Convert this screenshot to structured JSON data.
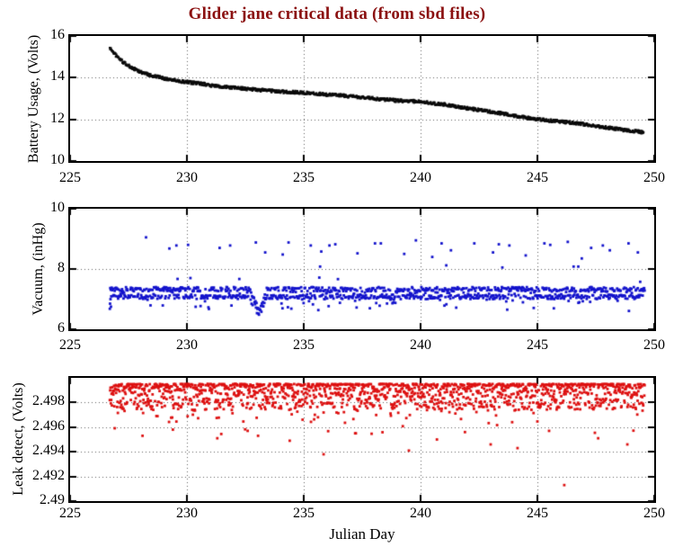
{
  "title": "Glider jane critical data (from sbd files)",
  "title_color": "#8b1010",
  "xlabel": "Julian Day",
  "axis_color": "#000000",
  "grid_color": "#606060",
  "chart_data": [
    {
      "type": "scatter",
      "ylabel": "Battery Usage, (Volts)",
      "xlim": [
        225,
        250
      ],
      "ylim": [
        10,
        16
      ],
      "xticks": [
        225,
        230,
        235,
        240,
        245,
        250
      ],
      "yticks": [
        10,
        12,
        14,
        16
      ],
      "grid": true,
      "marker_color": "#0a0a0a",
      "marker_size": 2.4,
      "series": [
        {
          "name": "battery_volts",
          "kind": "trend",
          "step": 0.02,
          "jitter": 0.07,
          "anchors": [
            [
              226.7,
              15.42
            ],
            [
              226.8,
              15.3
            ],
            [
              227.0,
              15.02
            ],
            [
              227.3,
              14.72
            ],
            [
              227.6,
              14.5
            ],
            [
              228.0,
              14.27
            ],
            [
              228.5,
              14.1
            ],
            [
              229.0,
              13.97
            ],
            [
              229.5,
              13.87
            ],
            [
              230.0,
              13.78
            ],
            [
              230.6,
              13.72
            ],
            [
              231.0,
              13.63
            ],
            [
              231.5,
              13.57
            ],
            [
              232.0,
              13.52
            ],
            [
              232.5,
              13.47
            ],
            [
              233.0,
              13.42
            ],
            [
              233.6,
              13.37
            ],
            [
              234.0,
              13.33
            ],
            [
              234.6,
              13.3
            ],
            [
              235.0,
              13.28
            ],
            [
              235.5,
              13.24
            ],
            [
              236.0,
              13.18
            ],
            [
              236.3,
              13.22
            ],
            [
              236.6,
              13.14
            ],
            [
              237.0,
              13.1
            ],
            [
              237.5,
              13.06
            ],
            [
              238.0,
              13.0
            ],
            [
              238.5,
              12.95
            ],
            [
              239.0,
              12.9
            ],
            [
              239.5,
              12.88
            ],
            [
              240.0,
              12.85
            ],
            [
              240.5,
              12.78
            ],
            [
              241.0,
              12.72
            ],
            [
              241.5,
              12.62
            ],
            [
              242.0,
              12.53
            ],
            [
              242.5,
              12.45
            ],
            [
              243.0,
              12.37
            ],
            [
              243.5,
              12.28
            ],
            [
              244.0,
              12.17
            ],
            [
              244.5,
              12.08
            ],
            [
              245.0,
              12.0
            ],
            [
              245.5,
              11.95
            ],
            [
              246.0,
              11.9
            ],
            [
              246.5,
              11.83
            ],
            [
              247.0,
              11.76
            ],
            [
              247.5,
              11.68
            ],
            [
              248.0,
              11.6
            ],
            [
              248.5,
              11.52
            ],
            [
              249.0,
              11.45
            ],
            [
              249.55,
              11.38
            ]
          ]
        }
      ]
    },
    {
      "type": "scatter",
      "ylabel": "Vacuum, (inHg)",
      "xlim": [
        225,
        250
      ],
      "ylim": [
        6,
        10
      ],
      "xticks": [
        225,
        230,
        235,
        240,
        245,
        250
      ],
      "yticks": [
        6,
        8,
        10
      ],
      "grid": true,
      "marker_color": "#1414cc",
      "marker_size": 2.8,
      "series": [
        {
          "name": "vacuum_band",
          "kind": "band",
          "x_start": 226.72,
          "x_end": 249.6,
          "step": 0.021,
          "upper": 7.33,
          "lower": 7.07,
          "noise": 0.07,
          "stray_prob": 0.05,
          "stray": 0.3,
          "floor": 6.38,
          "dips": [
            {
              "center": 233.05,
              "width": 0.38,
              "depth": 0.75
            },
            {
              "center": 238.85,
              "width": 0.16,
              "depth": 0.3
            }
          ],
          "ramp": [
            [
              226.7,
              6.68
            ],
            [
              226.71,
              6.85
            ],
            [
              226.73,
              7.0
            ],
            [
              226.75,
              6.75
            ]
          ]
        },
        {
          "name": "vacuum_high_outliers",
          "kind": "points",
          "points": [
            [
              228.25,
              9.05
            ],
            [
              229.25,
              8.68
            ],
            [
              229.55,
              8.78
            ],
            [
              229.6,
              7.67
            ],
            [
              230.05,
              8.8
            ],
            [
              230.15,
              7.7
            ],
            [
              231.4,
              8.7
            ],
            [
              231.85,
              8.78
            ],
            [
              232.95,
              8.88
            ],
            [
              233.35,
              8.55
            ],
            [
              234.1,
              8.48
            ],
            [
              234.35,
              8.88
            ],
            [
              235.3,
              8.78
            ],
            [
              235.7,
              8.08
            ],
            [
              235.75,
              8.58
            ],
            [
              236.1,
              8.78
            ],
            [
              236.35,
              8.82
            ],
            [
              237.3,
              8.52
            ],
            [
              238.05,
              8.85
            ],
            [
              238.3,
              8.85
            ],
            [
              239.3,
              8.5
            ],
            [
              239.8,
              8.95
            ],
            [
              240.5,
              8.4
            ],
            [
              240.9,
              8.85
            ],
            [
              241.1,
              8.12
            ],
            [
              241.3,
              8.62
            ],
            [
              242.3,
              8.85
            ],
            [
              243.1,
              8.55
            ],
            [
              243.35,
              8.82
            ],
            [
              243.5,
              8.05
            ],
            [
              243.8,
              8.78
            ],
            [
              244.5,
              8.45
            ],
            [
              245.3,
              8.85
            ],
            [
              245.55,
              8.8
            ],
            [
              246.3,
              8.9
            ],
            [
              246.55,
              8.08
            ],
            [
              246.75,
              8.08
            ],
            [
              246.9,
              8.35
            ],
            [
              247.3,
              8.7
            ],
            [
              247.8,
              8.78
            ],
            [
              248.1,
              8.62
            ],
            [
              248.9,
              8.85
            ],
            [
              249.3,
              8.55
            ]
          ]
        }
      ]
    },
    {
      "type": "scatter",
      "ylabel": "Leak detect, (Volts)",
      "xlim": [
        225,
        250
      ],
      "ylim": [
        2.49,
        2.5
      ],
      "xticks": [
        225,
        230,
        235,
        240,
        245,
        250
      ],
      "yticks": [
        2.49,
        2.492,
        2.494,
        2.496,
        2.498
      ],
      "grid": true,
      "marker_color": "#dd1111",
      "marker_size": 2.8,
      "series": [
        {
          "name": "leak_cloud",
          "kind": "cloud",
          "x_start": 226.7,
          "x_end": 249.6,
          "step": 0.015,
          "top": 2.4996,
          "e_min": 0.0001,
          "e_main": 0.0021,
          "tail_prob": 0.1,
          "tail_min": 0.0006,
          "tail_max": 0.0018,
          "floor": 2.4942
        },
        {
          "name": "leak_low_outliers",
          "kind": "points",
          "points": [
            [
              228.1,
              2.4953
            ],
            [
              229.4,
              2.4958
            ],
            [
              231.3,
              2.4951
            ],
            [
              232.6,
              2.4957
            ],
            [
              234.4,
              2.4949
            ],
            [
              235.85,
              2.4938
            ],
            [
              237.2,
              2.4955
            ],
            [
              239.5,
              2.4941
            ],
            [
              240.7,
              2.495
            ],
            [
              241.9,
              2.4956
            ],
            [
              243.0,
              2.4946
            ],
            [
              244.15,
              2.4943
            ],
            [
              245.5,
              2.4957
            ],
            [
              246.15,
              2.4913
            ],
            [
              247.6,
              2.4951
            ],
            [
              248.85,
              2.4946
            ]
          ]
        }
      ]
    }
  ]
}
